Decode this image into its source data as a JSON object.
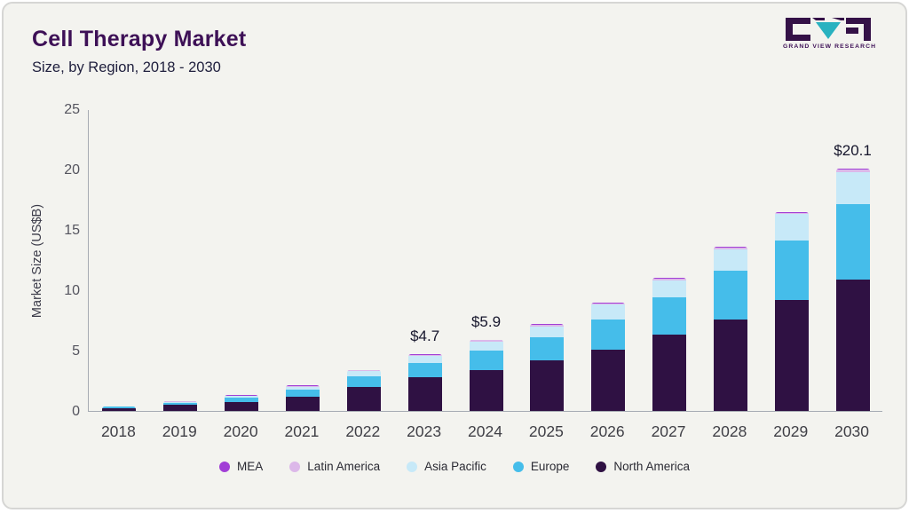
{
  "header": {
    "title": "Cell Therapy Market",
    "subtitle": "Size, by Region, 2018 - 2030"
  },
  "logo": {
    "text": "GRAND VIEW RESEARCH",
    "accent_color": "#29b2c0",
    "dark_color": "#341147"
  },
  "chart_data": {
    "type": "bar",
    "stacked": true,
    "title": "Cell Therapy Market Size, by Region, 2018 - 2030",
    "ylabel": "Market Size (US$B)",
    "xlabel": "",
    "ylim": [
      0,
      25
    ],
    "yticks": [
      0,
      5,
      10,
      15,
      20,
      25
    ],
    "grid": false,
    "legend_position": "bottom",
    "categories": [
      "2018",
      "2019",
      "2020",
      "2021",
      "2022",
      "2023",
      "2024",
      "2025",
      "2026",
      "2027",
      "2028",
      "2029",
      "2030"
    ],
    "series": [
      {
        "name": "North America",
        "color": "#2f1143",
        "values": [
          0.25,
          0.48,
          0.75,
          1.2,
          2.0,
          2.8,
          3.4,
          4.2,
          5.1,
          6.3,
          7.6,
          9.2,
          10.9
        ]
      },
      {
        "name": "Europe",
        "color": "#45bdea",
        "values": [
          0.09,
          0.2,
          0.33,
          0.55,
          0.9,
          1.2,
          1.6,
          1.9,
          2.5,
          3.1,
          4.0,
          4.9,
          6.2
        ]
      },
      {
        "name": "Asia Pacific",
        "color": "#c7e9f8",
        "values": [
          0.04,
          0.09,
          0.16,
          0.27,
          0.4,
          0.55,
          0.75,
          0.9,
          1.2,
          1.4,
          1.8,
          2.2,
          2.7
        ]
      },
      {
        "name": "Latin America",
        "color": "#dcb8e9",
        "values": [
          0.015,
          0.02,
          0.04,
          0.05,
          0.07,
          0.1,
          0.1,
          0.13,
          0.13,
          0.13,
          0.13,
          0.13,
          0.2
        ]
      },
      {
        "name": "MEA",
        "color": "#a13fd6",
        "values": [
          0.005,
          0.01,
          0.02,
          0.03,
          0.03,
          0.05,
          0.05,
          0.07,
          0.07,
          0.07,
          0.07,
          0.07,
          0.1
        ]
      }
    ],
    "bar_labels": {
      "2023": "$4.7",
      "2024": "$5.9",
      "2030": "$20.1"
    },
    "legend": [
      "MEA",
      "Latin America",
      "Asia Pacific",
      "Europe",
      "North America"
    ]
  }
}
